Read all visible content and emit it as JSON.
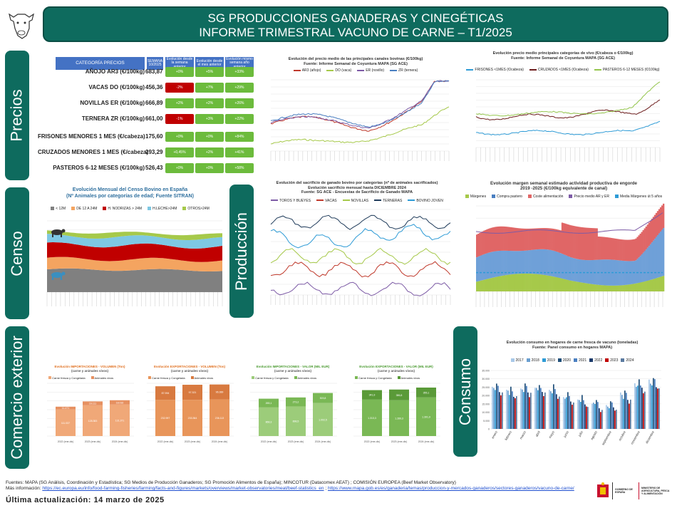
{
  "header": {
    "line1": "SG PRODUCCIONES GANADERAS Y CINEGÉTICAS",
    "line2": "INFORME TRIMESTRAL VACUNO DE CARNE – T1/2025"
  },
  "sections": {
    "precios": "Precios",
    "censo": "Censo",
    "produccion": "Producción",
    "comercio": "Comercio exterior",
    "consumo": "Consumo"
  },
  "price_table": {
    "head_category": "CATEGORÍA PRECIOS",
    "head_week": "SEMANA 10/2025",
    "head_c1": "Evolución desde la semana anterior",
    "head_c2": "Evolución desde el mes anterior",
    "head_c3": "Evolución mismo semana año anterior",
    "rows": [
      {
        "label": "AÑOJO AR3 (€/100kg)",
        "value": "683,87",
        "c1": "+0%",
        "c1c": "g",
        "c2": "+5%",
        "c3": "+33%"
      },
      {
        "label": "VACAS DO (€/100kg)",
        "value": "456,36",
        "c1": "-2%",
        "c1c": "r",
        "c2": "+7%",
        "c3": "+29%"
      },
      {
        "label": "NOVILLAS ER (€/100kg)",
        "value": "666,89",
        "c1": "+2%",
        "c1c": "g",
        "c2": "+2%",
        "c3": "+26%"
      },
      {
        "label": "TERNERA ZR (€/100kg)",
        "value": "661,00",
        "c1": "-1%",
        "c1c": "r",
        "c2": "+3%",
        "c3": "+22%"
      },
      {
        "label": "FRISONES MENORES 1 MES (€/cabeza)",
        "value": "175,60",
        "c1": "+0%",
        "c1c": "g",
        "c2": "+0%",
        "c3": "+84%"
      },
      {
        "label": "CRUZADOS MENORES 1 MES (€/cabeza)",
        "value": "293,29",
        "c1": "+0,45%",
        "c1c": "g",
        "c2": "+2%",
        "c3": "+41%"
      },
      {
        "label": "PASTEROS 6-12 MESES (€/100kg)",
        "value": "526,43",
        "c1": "+0%",
        "c1c": "g",
        "c2": "+0%",
        "c3": "+58%"
      }
    ]
  },
  "chart_canales": {
    "title1": "Evolución del precio medio de las principales canales bovinas  (€/100kg)",
    "title2": "Fuente: Informe Semanal de Coyuntura MAPA (SG ACE)",
    "legend": [
      "AR3 (añojo)",
      "DO (vaca)",
      "ER (novillo)",
      "ZR (ternera)"
    ],
    "colors": [
      "#c0392b",
      "#a6c94a",
      "#7d5ba6",
      "#4a7fc1"
    ]
  },
  "chart_vivo": {
    "title1": "Evolución precio medio principales categorías de vivo (€/cabeza o €/100kg)",
    "title2": "Fuente: Informe Semanal de Coyuntura MAPA (SG ACE)",
    "legend": [
      "FRISONES <1MES (€/cabeza)",
      "CRUZADOS <1MES (€/cabeza)",
      "PASTEROS 6-12 MESES (€/100kg)"
    ],
    "colors": [
      "#2e9bd6",
      "#6b1a1a",
      "#93c54b"
    ]
  },
  "chart_censo": {
    "title1": "Evolución Mensual del Censo Bovino en España",
    "title2": "(Nº Animales por categorías de edad; Fuente SITRAN)",
    "legend": [
      "< 12M",
      "DE 12 A 24M",
      "H. NODRIZAS > 24M",
      "H.LECHE>24M",
      "OTROS>24M"
    ],
    "colors": [
      "#808080",
      "#f4a460",
      "#c00000",
      "#7ec8e3",
      "#a6c94a"
    ]
  },
  "chart_sacrificio": {
    "title1": "Evolución del sacrificio de ganado bovino por categorías  (nº de animales sacrificados)",
    "title2": "Evolución sacrificio mensual hasta DICIEMBRE 2024",
    "title3": "Fuente: SG ACE - Encuestas de Sacrificio de Ganado MAPA",
    "legend": [
      "TOROS Y BUEYES",
      "VACAS",
      "NOVILLAS",
      "TERNERAS",
      "BOVINO JOVEN"
    ],
    "colors": [
      "#7d5ba6",
      "#c0392b",
      "#a6c94a",
      "#1f3b5a",
      "#2e9bd6"
    ]
  },
  "chart_margen": {
    "title1": "Evolución margen semanal estimado actividad productiva de engorde",
    "title2": "2019 -2025 (€/100kg equivalente de canal)",
    "legend": [
      "Márgenes",
      "Compra pastero",
      "Coste alimentación",
      "Precio medio AR y ER",
      "Media Márgenes út 5 años"
    ],
    "colors": [
      "#a6c94a",
      "#4a7fc1",
      "#e06666",
      "#7d5ba6",
      "#2e9bd6"
    ]
  },
  "comercio": [
    {
      "title1": "Evolución IMPORTACIONES - VOLUMEN (Ton)",
      "title2": "(carne y animales vivos)",
      "legend": [
        "Carne fresca y Congelada",
        "Animales vivos"
      ],
      "color": "#f0a878",
      "color2": "#e69060",
      "titleColor": "#e07020",
      "bars": [
        {
          "x": "2022 (ene-dic)",
          "bottom": "111.037",
          "top": "11.471"
        },
        {
          "x": "2023 (ene-dic)",
          "bottom": "128.383",
          "top": "16.111"
        },
        {
          "x": "2024 (ene-dic)",
          "bottom": "131.371",
          "top": "18.032"
        }
      ],
      "max": 220
    },
    {
      "title1": "Evolución EXPORTACIONES - VOLUMEN (Ton)",
      "title2": "(carne y animales vivos)",
      "legend": [
        "Carne fresca y Congelada",
        "Animales vivos"
      ],
      "color": "#e8955a",
      "color2": "#d87a40",
      "titleColor": "#e07020",
      "bars": [
        {
          "x": "2022 (ene-dic)",
          "bottom": "232.997",
          "top": "87.994"
        },
        {
          "x": "2023 (ene-dic)",
          "bottom": "233.364",
          "top": "97.321"
        },
        {
          "x": "2024 (ene-dic)",
          "bottom": "236.113",
          "top": "96.389"
        }
      ],
      "max": 340
    },
    {
      "title1": "Evolución IMPORTACIONES - VALOR (MIL EUR)",
      "title2": "(carne y animales vivos)",
      "legend": [
        "Carne fresca y Congelada",
        "Animales vivos"
      ],
      "color": "#9ccc7a",
      "color2": "#7ab855",
      "titleColor": "#4a9a30",
      "bars": [
        {
          "x": "2022 (ene-dic)",
          "bottom": "868,3",
          "top": "265,1"
        },
        {
          "x": "2023 (ene-dic)",
          "bottom": "898,5",
          "top": "273,2"
        },
        {
          "x": "2024 (ene-dic)",
          "bottom": "1.002,5",
          "top": "303,8"
        }
      ],
      "max": 1600
    },
    {
      "title1": "Evolución EXPORTACIONES - VALOR (MIL EUR)",
      "title2": "(carne y animales vivos)",
      "legend": [
        "Carne fresca y Congelada",
        "Animales vivos"
      ],
      "color": "#7ab855",
      "color2": "#5a9a38",
      "titleColor": "#4a9a30",
      "bars": [
        {
          "x": "2022 (ene-dic)",
          "bottom": "1.313,3",
          "top": "341,9"
        },
        {
          "x": "2023 (ene-dic)",
          "bottom": "1.289,3",
          "top": "386,8"
        },
        {
          "x": "2024 (ene-dic)",
          "bottom": "1.391,9",
          "top": "355,1"
        }
      ],
      "max": 1900
    }
  ],
  "chart_consumo": {
    "title1": "Evolución consumo en hogares de carne fresca de vacuno (toneladas)",
    "title2": "Fuente: Panel consumo en hogares MAPA)",
    "years": [
      "2017",
      "2018",
      "2019",
      "2020",
      "2021",
      "2022",
      "2023",
      "2024"
    ],
    "colors": [
      "#a8c8e8",
      "#6a9fd0",
      "#2e9bd6",
      "#1f4e79",
      "#4a7fc1",
      "#1a3a6a",
      "#c00000",
      "#5a7aa0"
    ],
    "months": [
      "enero",
      "febrero",
      "marzo",
      "abril",
      "mayo",
      "junio",
      "julio",
      "agosto",
      "septiembre",
      "octubre",
      "noviembre",
      "diciembre"
    ],
    "ticks": [
      "0",
      "5.000",
      "10.000",
      "15.000",
      "20.000",
      "25.000",
      "30.000",
      "35.000"
    ]
  },
  "footer": {
    "fuentes": "Fuentes: MAPA (SG Análisis, Coordinación y Estadística; SG Medios de Producción Ganaderos; SG Promoción Alimentos de España); MINCOTUR (Datacomex AEAT) ; COMISIÓN EUROPEA (Beef Market Observatory)",
    "mas_label": "Más información:",
    "link1": "https://ec.europa.eu/info/food-farming-fisheries/farming/facts-and-figures/markets/overviews/market-observatories/meat/beef-statistics_en",
    "link2": "https://www.mapa.gob.es/es/ganaderia/temas/produccion-y-mercados-ganaderos/sectores-ganaderos/vacuno-de-carne/",
    "ultima": "Última actualización: 14 marzo de 2025"
  },
  "logo": {
    "gov": "GOBIERNO DE ESPAÑA",
    "min": "MINISTERIO DE AGRICULTURA, PESCA Y ALIMENTACIÓN"
  }
}
